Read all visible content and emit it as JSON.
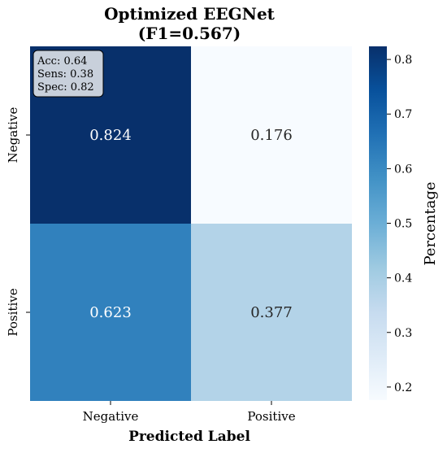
{
  "chart_data": {
    "type": "heatmap",
    "title_line1": "Optimized EEGNet",
    "title_line2": "(F1=0.567)",
    "xlabel": "Predicted Label",
    "ylabel": "",
    "x_categories": [
      "Negative",
      "Positive"
    ],
    "y_categories": [
      "Negative",
      "Positive"
    ],
    "values": [
      [
        0.824,
        0.176
      ],
      [
        0.623,
        0.377
      ]
    ],
    "cell_labels": [
      [
        "0.824",
        "0.176"
      ],
      [
        "0.623",
        "0.377"
      ]
    ],
    "colormap": "Blues",
    "colorbar": {
      "label": "Percentage",
      "range": [
        0.176,
        0.824
      ],
      "ticks": [
        0.2,
        0.3,
        0.4,
        0.5,
        0.6,
        0.7,
        0.8
      ],
      "tick_labels": [
        "0.2",
        "0.3",
        "0.4",
        "0.5",
        "0.6",
        "0.7",
        "0.8"
      ]
    },
    "stats_box": {
      "lines": [
        "Acc: 0.64",
        "Sens: 0.38",
        "Spec: 0.82"
      ],
      "placement": "top-left"
    }
  }
}
